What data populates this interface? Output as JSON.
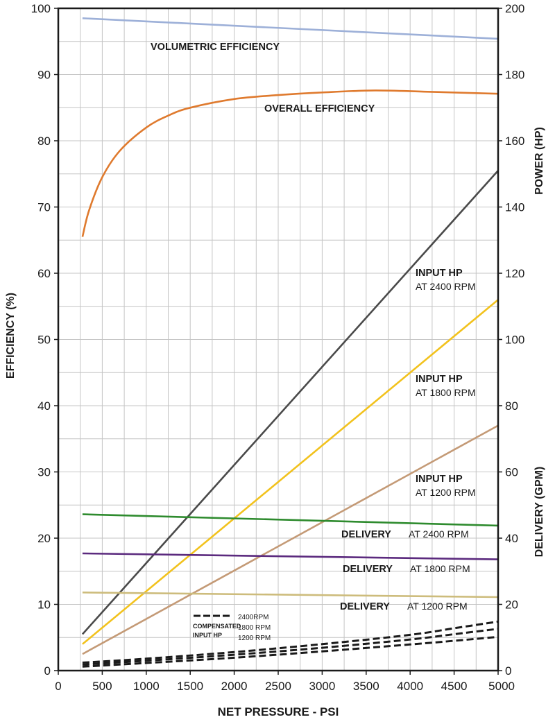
{
  "chart_data": {
    "type": "line",
    "xlabel": "NET PRESSURE - PSI",
    "ylabel_left": "EFFICIENCY (%)",
    "ylabel_right_top": "POWER (HP)",
    "ylabel_right_bottom": "DELIVERY (GPM)",
    "xlim": [
      0,
      5000
    ],
    "ylim_left": [
      0,
      100
    ],
    "ylim_right": [
      0,
      200
    ],
    "grid": true,
    "x_ticks": [
      "0",
      "500",
      "1000",
      "1500",
      "2000",
      "2500",
      "3000",
      "3500",
      "4000",
      "4500",
      "5000"
    ],
    "y_left_ticks": [
      "0",
      "10",
      "20",
      "30",
      "40",
      "50",
      "60",
      "70",
      "80",
      "90",
      "100"
    ],
    "y_right_ticks": [
      "0",
      "20",
      "40",
      "60",
      "80",
      "100",
      "120",
      "140",
      "160",
      "180",
      "200"
    ],
    "series": [
      {
        "id": "vol",
        "name": "VOLUMETRIC EFFICIENCY",
        "axis": "left",
        "color": "#9db0d8",
        "x": [
          275,
          5000
        ],
        "y": [
          98.5,
          95.4
        ]
      },
      {
        "id": "overall",
        "name": "OVERALL EFFICIENCY",
        "axis": "left",
        "color": "#df7a2e",
        "smooth": true,
        "x": [
          275,
          350,
          500,
          700,
          1000,
          1250,
          1500,
          2000,
          2500,
          3000,
          3600,
          4200,
          5000
        ],
        "y": [
          65.5,
          69.5,
          74.5,
          78.5,
          82.0,
          83.8,
          85.0,
          86.3,
          86.9,
          87.3,
          87.6,
          87.4,
          87.1
        ]
      },
      {
        "id": "hp2400",
        "name_bold": "INPUT HP",
        "name_rest": "AT 2400 RPM",
        "axis": "right",
        "color": "#4a4a4a",
        "x": [
          275,
          5000
        ],
        "y": [
          11,
          151
        ]
      },
      {
        "id": "hp1800",
        "name_bold": "INPUT HP",
        "name_rest": "AT 1800 RPM",
        "axis": "right",
        "color": "#f2c21d",
        "x": [
          275,
          5000
        ],
        "y": [
          8,
          112
        ]
      },
      {
        "id": "hp1200",
        "name_bold": "INPUT HP",
        "name_rest": "AT 1200 RPM",
        "axis": "right",
        "color": "#c49a76",
        "x": [
          275,
          5000
        ],
        "y": [
          5,
          74
        ]
      },
      {
        "id": "del2400",
        "name_bold": "DELIVERY",
        "name_rest": "AT 2400 RPM",
        "axis": "right",
        "color": "#2e8b2e",
        "x": [
          275,
          5000
        ],
        "y": [
          47.2,
          43.8
        ]
      },
      {
        "id": "del1800",
        "name_bold": "DELIVERY",
        "name_rest": "AT 1800 RPM",
        "axis": "right",
        "color": "#5b2a7e",
        "x": [
          275,
          5000
        ],
        "y": [
          35.4,
          33.6
        ]
      },
      {
        "id": "del1200",
        "name_bold": "DELIVERY",
        "name_rest": "AT 1200 RPM",
        "axis": "right",
        "color": "#cdbc7c",
        "x": [
          275,
          5000
        ],
        "y": [
          23.6,
          22.2
        ]
      },
      {
        "id": "comp2400",
        "axis": "right",
        "color": "#1a1a1a",
        "dashed": true,
        "smooth": true,
        "x": [
          275,
          1000,
          2000,
          3000,
          4000,
          4500,
          5000
        ],
        "y": [
          2.4,
          3.6,
          5.6,
          8.0,
          10.8,
          12.8,
          14.8
        ]
      },
      {
        "id": "comp1800",
        "axis": "right",
        "color": "#1a1a1a",
        "dashed": true,
        "smooth": true,
        "x": [
          275,
          1000,
          2000,
          3000,
          4000,
          4500,
          5000
        ],
        "y": [
          1.8,
          3.0,
          4.8,
          6.9,
          9.4,
          11.0,
          12.6
        ]
      },
      {
        "id": "comp1200",
        "axis": "right",
        "color": "#1a1a1a",
        "dashed": true,
        "smooth": true,
        "x": [
          275,
          1000,
          2000,
          3000,
          4000,
          4500,
          5000
        ],
        "y": [
          1.2,
          2.3,
          3.9,
          5.8,
          7.9,
          9.0,
          10.2
        ]
      }
    ],
    "legend_compensated": {
      "label_line1": "COMPENSATED",
      "label_line2": "INPUT HP",
      "entries": [
        "2400RPM",
        "1800 RPM",
        "1200 RPM"
      ]
    }
  }
}
